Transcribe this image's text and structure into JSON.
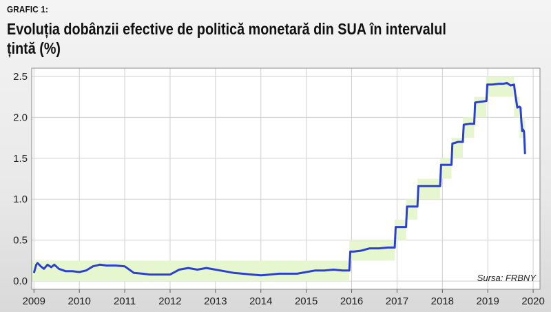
{
  "header": {
    "grafic_label": "GRAFIC 1:",
    "title": "Evoluția dobânzii efective de politică monetară din SUA în intervalul țintă (%)"
  },
  "source_text": "Sursa: FRBNY",
  "colors": {
    "line": "#2b3fd1",
    "band": "#e6f7cf",
    "plot_bg": "#ffffff",
    "grid": "#cfcfcf"
  },
  "chart_data": {
    "type": "line",
    "title": "Evoluția dobânzii efective de politică monetară din SUA în intervalul țintă (%)",
    "xlabel": "",
    "ylabel": "",
    "xlim": [
      2008.95,
      2020.15
    ],
    "ylim": [
      -0.1,
      2.6
    ],
    "x_ticks": [
      2009,
      2010,
      2011,
      2012,
      2013,
      2014,
      2015,
      2016,
      2017,
      2018,
      2019,
      2020
    ],
    "y_ticks": [
      0.0,
      0.5,
      1.0,
      1.5,
      2.0,
      2.5
    ],
    "y_tick_labels": [
      "0.0",
      "0.5",
      "1.0",
      "1.5",
      "2.0",
      "2.5"
    ],
    "grid": true,
    "target_range_band": {
      "x": [
        2008.95,
        2015.95,
        2015.95,
        2016.95,
        2016.95,
        2017.2,
        2017.2,
        2017.45,
        2017.45,
        2017.95,
        2017.95,
        2018.2,
        2018.2,
        2018.45,
        2018.45,
        2018.7,
        2018.7,
        2018.97,
        2018.97,
        2019.58,
        2019.58,
        2019.7,
        2019.7,
        2019.82
      ],
      "lower": [
        0.0,
        0.0,
        0.25,
        0.25,
        0.5,
        0.5,
        0.75,
        0.75,
        1.0,
        1.0,
        1.25,
        1.25,
        1.5,
        1.5,
        1.75,
        1.75,
        2.0,
        2.0,
        2.25,
        2.25,
        2.0,
        2.0,
        1.75,
        1.75
      ],
      "upper": [
        0.25,
        0.25,
        0.5,
        0.5,
        0.75,
        0.75,
        1.0,
        1.0,
        1.25,
        1.25,
        1.5,
        1.5,
        1.75,
        1.75,
        2.0,
        2.0,
        2.25,
        2.25,
        2.5,
        2.5,
        2.25,
        2.25,
        2.0,
        2.0
      ]
    },
    "series": [
      {
        "x": [
          2009.0,
          2009.05,
          2009.08,
          2009.15,
          2009.22,
          2009.3,
          2009.38,
          2009.45,
          2009.55,
          2009.7,
          2009.85,
          2010.0,
          2010.15,
          2010.3,
          2010.45,
          2010.6,
          2010.8,
          2011.0,
          2011.2,
          2011.4,
          2011.55,
          2011.75,
          2012.0,
          2012.2,
          2012.4,
          2012.6,
          2012.8,
          2013.0,
          2013.2,
          2013.4,
          2013.6,
          2013.8,
          2014.0,
          2014.2,
          2014.4,
          2014.6,
          2014.8,
          2015.0,
          2015.2,
          2015.4,
          2015.6,
          2015.8,
          2015.95,
          2015.97,
          2016.05,
          2016.2,
          2016.4,
          2016.6,
          2016.8,
          2016.95,
          2016.97,
          2017.1,
          2017.2,
          2017.22,
          2017.35,
          2017.45,
          2017.47,
          2017.6,
          2017.75,
          2017.95,
          2017.97,
          2018.1,
          2018.2,
          2018.22,
          2018.35,
          2018.45,
          2018.47,
          2018.6,
          2018.7,
          2018.72,
          2018.85,
          2018.97,
          2018.99,
          2019.1,
          2019.25,
          2019.35,
          2019.42,
          2019.5,
          2019.58,
          2019.6,
          2019.65,
          2019.7,
          2019.72,
          2019.74,
          2019.76,
          2019.78,
          2019.8,
          2019.82
        ],
        "y": [
          0.1,
          0.2,
          0.22,
          0.18,
          0.15,
          0.2,
          0.17,
          0.2,
          0.15,
          0.12,
          0.12,
          0.11,
          0.13,
          0.18,
          0.2,
          0.19,
          0.19,
          0.18,
          0.1,
          0.09,
          0.08,
          0.08,
          0.08,
          0.14,
          0.16,
          0.14,
          0.16,
          0.14,
          0.12,
          0.1,
          0.09,
          0.08,
          0.07,
          0.08,
          0.09,
          0.09,
          0.09,
          0.11,
          0.13,
          0.13,
          0.14,
          0.13,
          0.13,
          0.36,
          0.36,
          0.37,
          0.4,
          0.4,
          0.41,
          0.41,
          0.66,
          0.66,
          0.66,
          0.91,
          0.91,
          0.91,
          1.16,
          1.16,
          1.16,
          1.16,
          1.42,
          1.42,
          1.42,
          1.68,
          1.7,
          1.7,
          1.91,
          1.92,
          1.92,
          2.18,
          2.19,
          2.2,
          2.4,
          2.4,
          2.41,
          2.41,
          2.42,
          2.39,
          2.4,
          2.3,
          2.12,
          2.13,
          2.12,
          1.95,
          1.83,
          1.85,
          1.82,
          1.55
        ]
      }
    ]
  }
}
